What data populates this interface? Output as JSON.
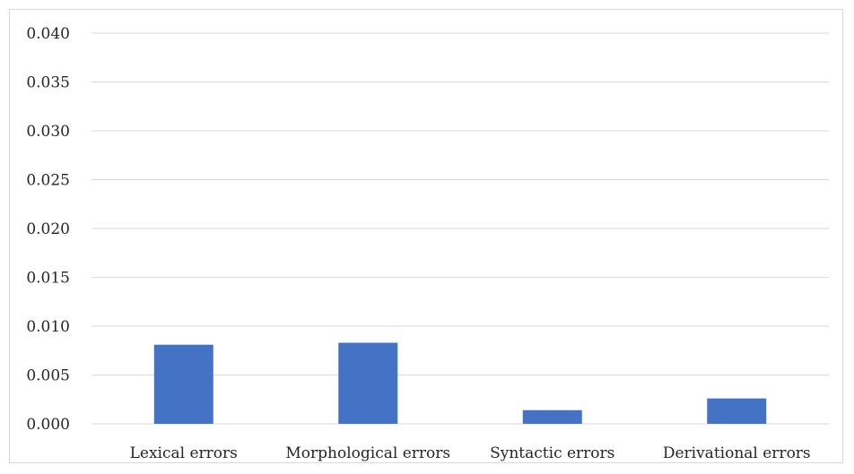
{
  "chart_data": {
    "type": "bar",
    "categories": [
      "Lexical errors",
      "Morphological errors",
      "Syntactic errors",
      "Derivational errors"
    ],
    "values": [
      0.0081,
      0.0083,
      0.0014,
      0.0026
    ],
    "ylim": [
      0,
      0.04
    ],
    "yticks": [
      "0.000",
      "0.005",
      "0.010",
      "0.015",
      "0.020",
      "0.025",
      "0.030",
      "0.035",
      "0.040"
    ],
    "grid": true,
    "bar_color": "#4472c4",
    "grid_color": "#d9d9d9"
  }
}
